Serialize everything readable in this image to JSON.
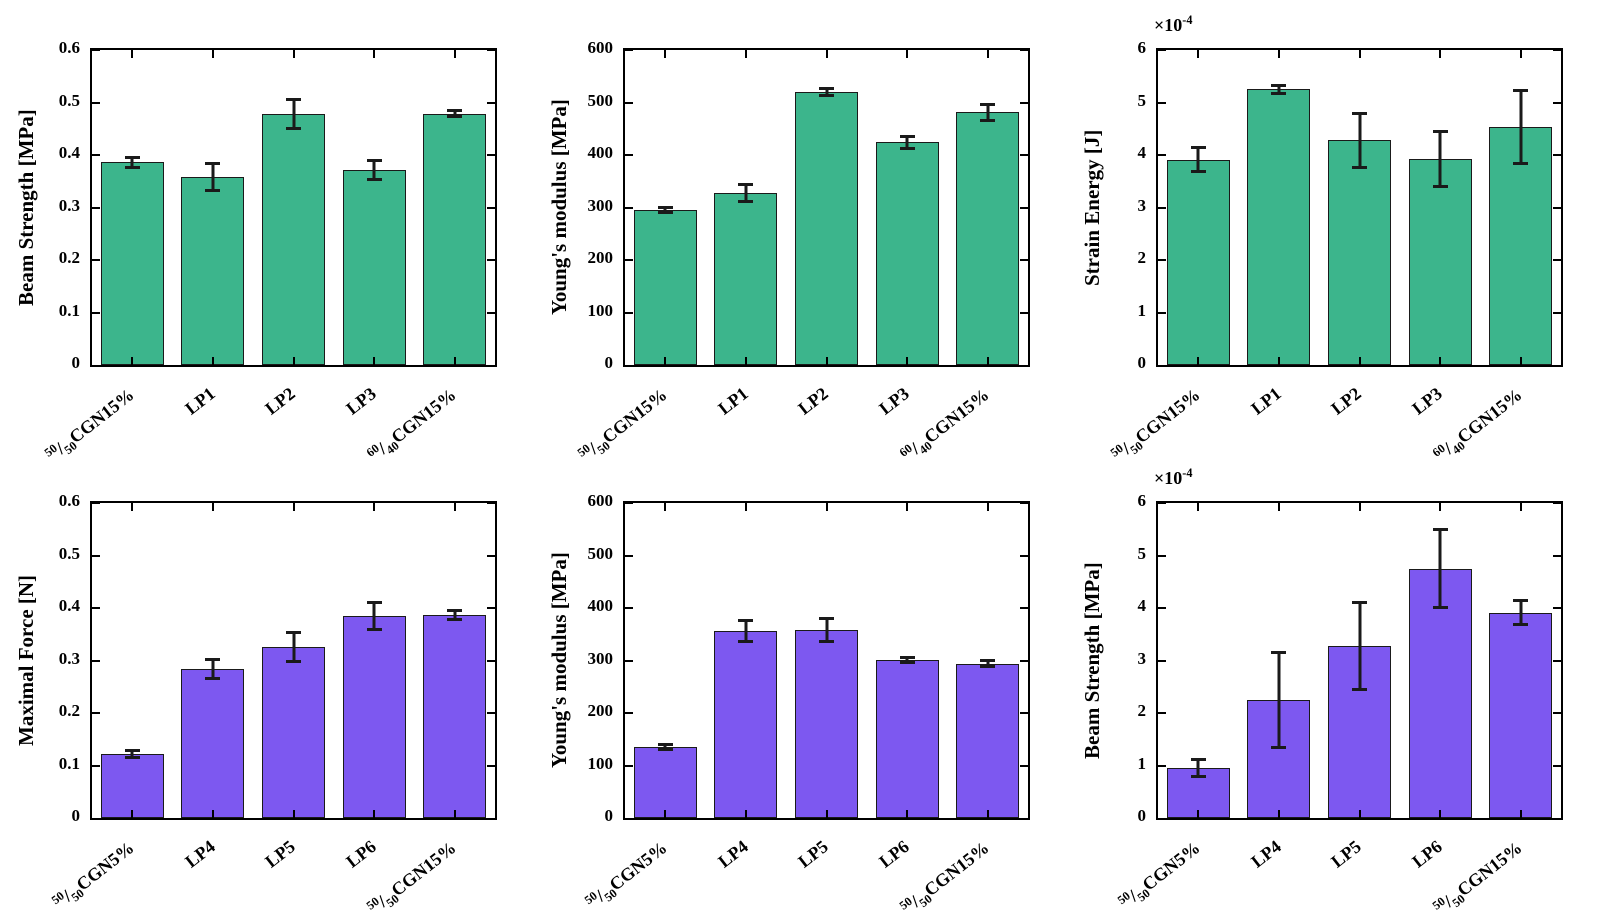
{
  "figure": {
    "background": "#ffffff",
    "axis_color": "#000000",
    "error_bar_color": "#1a1a1a",
    "top_row_bar_color": "#3cb58c",
    "bottom_row_bar_color": "#7d58f0"
  },
  "chart_data": [
    {
      "type": "bar",
      "panel": "top-left",
      "ylabel": "Beam Strength [MPa]",
      "exponent_base": "",
      "exponent_power": "",
      "bar_color": "#3cb58c",
      "ylim": [
        0,
        0.6
      ],
      "yticks": [
        "0",
        "0.1",
        "0.2",
        "0.3",
        "0.4",
        "0.5",
        "0.6"
      ],
      "categories": [
        {
          "sup": "50",
          "sub": "50",
          "text": "CGN15%"
        },
        "LP1",
        "LP2",
        "LP3",
        {
          "sup": "60",
          "sub": "40",
          "text": "CGN15%"
        }
      ],
      "values": [
        0.386,
        0.358,
        0.478,
        0.371,
        0.479
      ],
      "errors": [
        0.012,
        0.028,
        0.03,
        0.021,
        0.009
      ],
      "grid": false,
      "legend": null
    },
    {
      "type": "bar",
      "panel": "top-middle",
      "ylabel": "Young's modulus [MPa]",
      "exponent_base": "",
      "exponent_power": "",
      "bar_color": "#3cb58c",
      "ylim": [
        0,
        600
      ],
      "yticks": [
        "0",
        "100",
        "200",
        "300",
        "400",
        "500",
        "600"
      ],
      "categories": [
        {
          "sup": "50",
          "sub": "50",
          "text": "CGN15%"
        },
        "LP1",
        "LP2",
        "LP3",
        {
          "sup": "60",
          "sub": "40",
          "text": "CGN15%"
        }
      ],
      "values": [
        295,
        327,
        520,
        424,
        481
      ],
      "errors": [
        8,
        19,
        9,
        14,
        19
      ],
      "grid": false,
      "legend": null
    },
    {
      "type": "bar",
      "panel": "top-right",
      "ylabel": "Strain Energy [J]",
      "exponent_base": "×10",
      "exponent_power": "-4",
      "bar_color": "#3cb58c",
      "ylim": [
        0,
        6
      ],
      "yticks": [
        "0",
        "1",
        "2",
        "3",
        "4",
        "5",
        "6"
      ],
      "categories": [
        {
          "sup": "50",
          "sub": "50",
          "text": "CGN15%"
        },
        "LP1",
        "LP2",
        "LP3",
        {
          "sup": "60",
          "sub": "40",
          "text": "CGN15%"
        }
      ],
      "values": [
        3.91,
        5.25,
        4.28,
        3.93,
        4.53
      ],
      "errors": [
        0.26,
        0.11,
        0.54,
        0.55,
        0.73
      ],
      "grid": false,
      "legend": null
    },
    {
      "type": "bar",
      "panel": "bottom-left",
      "ylabel": "Maximal Force [N]",
      "exponent_base": "",
      "exponent_power": "",
      "bar_color": "#7d58f0",
      "ylim": [
        0,
        0.6
      ],
      "yticks": [
        "0",
        "0.1",
        "0.2",
        "0.3",
        "0.4",
        "0.5",
        "0.6"
      ],
      "categories": [
        {
          "sup": "50",
          "sub": "50",
          "text": "CGN5%"
        },
        "LP4",
        "LP5",
        "LP6",
        {
          "sup": "50",
          "sub": "50",
          "text": "CGN15%"
        }
      ],
      "values": [
        0.122,
        0.283,
        0.326,
        0.385,
        0.387
      ],
      "errors": [
        0.01,
        0.021,
        0.03,
        0.028,
        0.012
      ],
      "grid": false,
      "legend": null
    },
    {
      "type": "bar",
      "panel": "bottom-middle",
      "ylabel": "Young's modulus [MPa]",
      "exponent_base": "",
      "exponent_power": "",
      "bar_color": "#7d58f0",
      "ylim": [
        0,
        600
      ],
      "yticks": [
        "0",
        "100",
        "200",
        "300",
        "400",
        "500",
        "600"
      ],
      "categories": [
        {
          "sup": "50",
          "sub": "50",
          "text": "CGN5%"
        },
        "LP4",
        "LP5",
        "LP6",
        {
          "sup": "50",
          "sub": "50",
          "text": "CGN15%"
        }
      ],
      "values": [
        135,
        356,
        358,
        301,
        294
      ],
      "errors": [
        8,
        23,
        24,
        8,
        8
      ],
      "grid": false,
      "legend": null
    },
    {
      "type": "bar",
      "panel": "bottom-right",
      "ylabel": "Beam Strength [MPa]",
      "exponent_base": "×10",
      "exponent_power": "-4",
      "bar_color": "#7d58f0",
      "ylim": [
        0,
        6
      ],
      "yticks": [
        "0",
        "1",
        "2",
        "3",
        "4",
        "5",
        "6"
      ],
      "categories": [
        {
          "sup": "50",
          "sub": "50",
          "text": "CGN5%"
        },
        "LP4",
        "LP5",
        "LP6",
        {
          "sup": "50",
          "sub": "50",
          "text": "CGN15%"
        }
      ],
      "values": [
        0.95,
        2.25,
        3.28,
        4.75,
        3.91
      ],
      "errors": [
        0.19,
        0.93,
        0.86,
        0.77,
        0.26
      ],
      "grid": false,
      "legend": null
    }
  ]
}
